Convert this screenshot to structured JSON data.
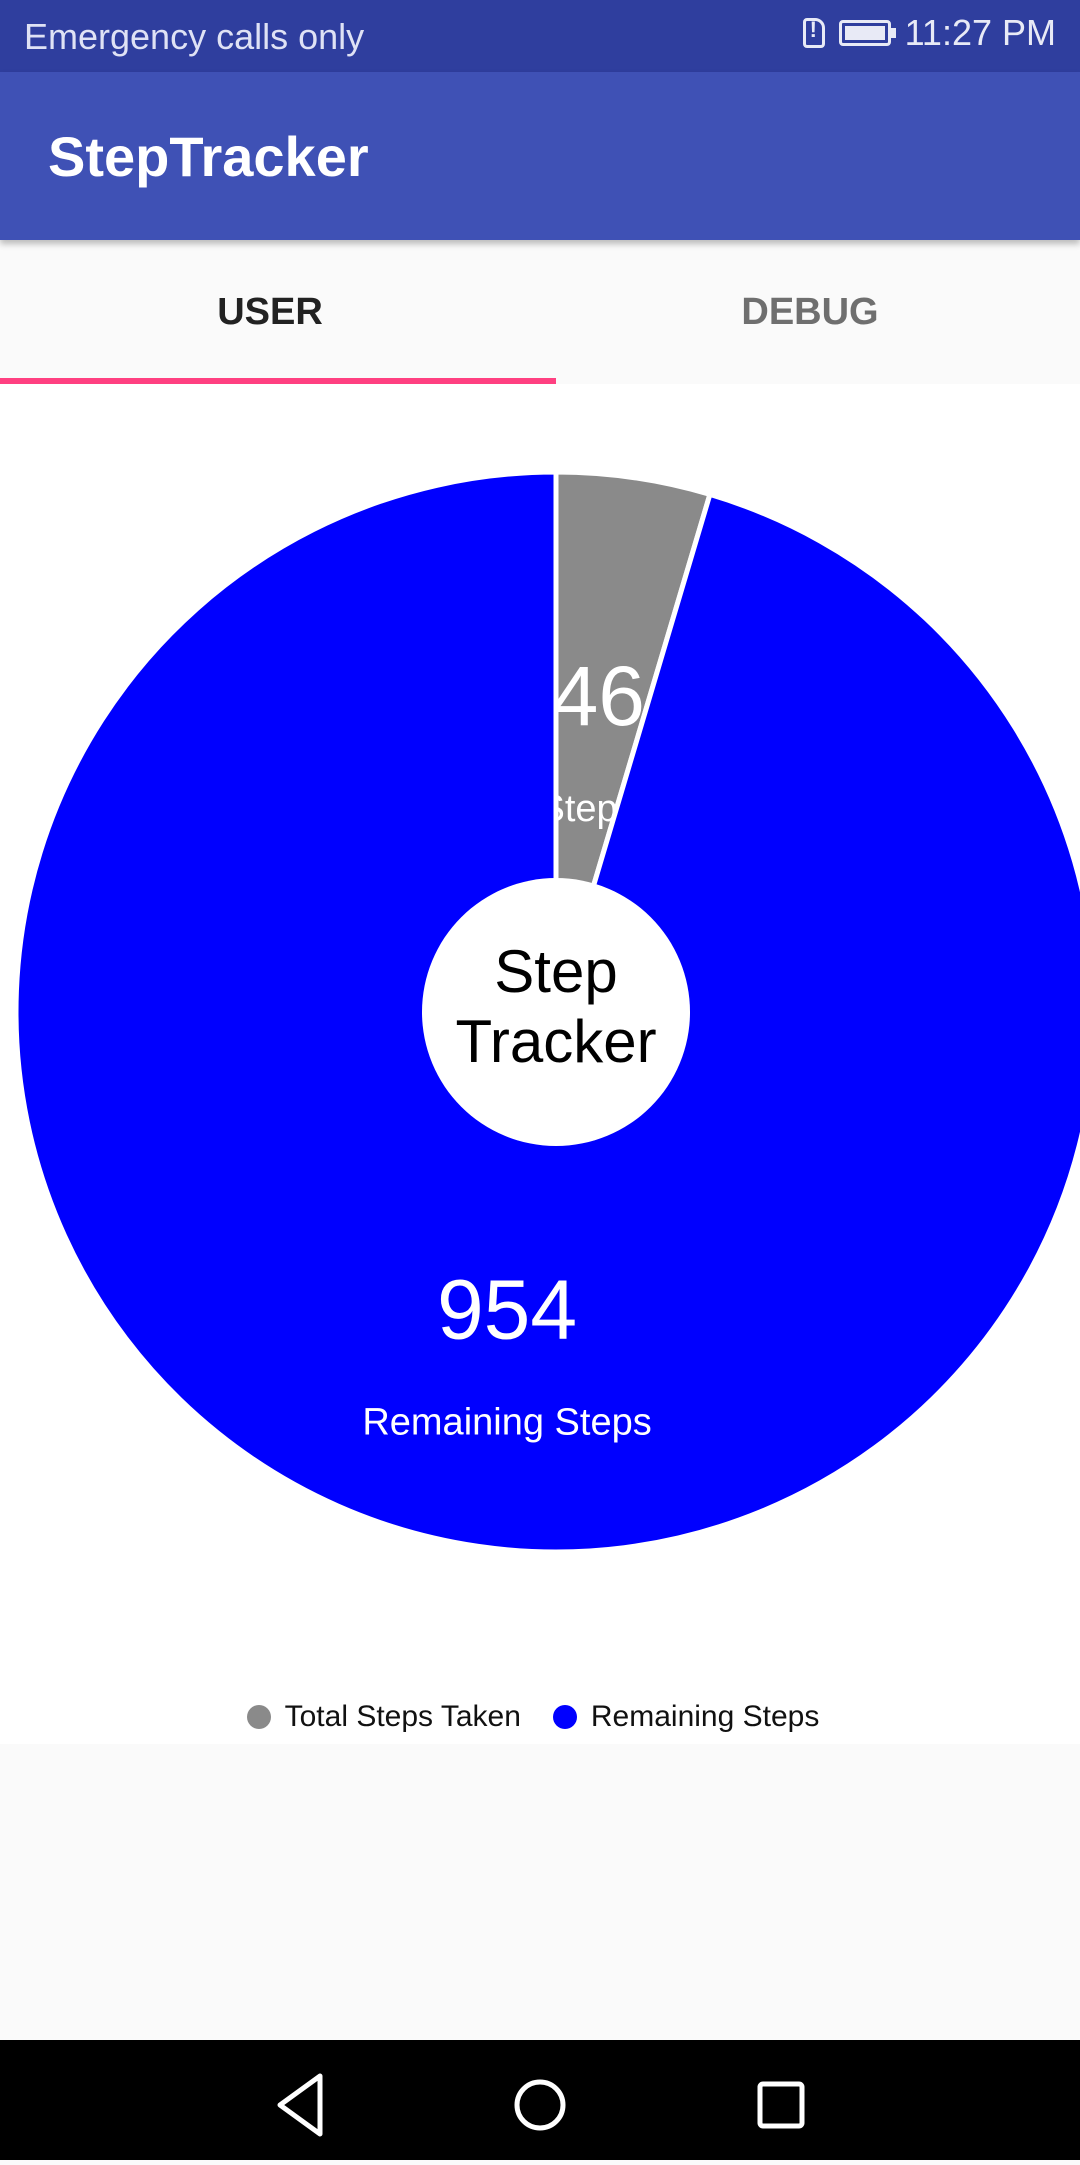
{
  "status_bar": {
    "carrier_text": "Emergency calls only",
    "time": "11:27 PM"
  },
  "app_bar": {
    "title": "StepTracker"
  },
  "tabs": [
    {
      "label": "USER",
      "selected": true
    },
    {
      "label": "DEBUG",
      "selected": false
    }
  ],
  "colors": {
    "status_bar": "#2f3e9e",
    "app_bar": "#3f51b5",
    "tab_indicator": "#ff4081",
    "taken": "#8a8a8a",
    "remaining": "#0000ff"
  },
  "chart_data": {
    "type": "pie",
    "center_text": [
      "Step",
      "Tracker"
    ],
    "slices": [
      {
        "name": "Total Steps Taken",
        "value": 46,
        "color": "#8a8a8a"
      },
      {
        "name": "Remaining Steps",
        "value": 954,
        "color": "#0000ff"
      }
    ],
    "legend_position": "bottom-center"
  },
  "nav_bar": {
    "icons": [
      "back-icon",
      "home-icon",
      "recents-icon"
    ]
  }
}
